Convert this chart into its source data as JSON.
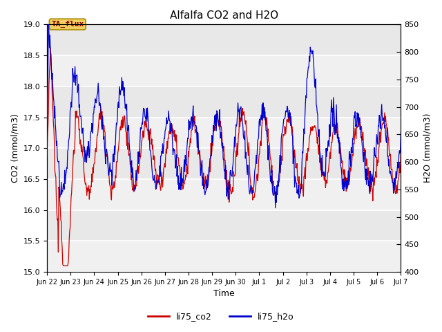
{
  "title": "Alfalfa CO2 and H2O",
  "xlabel": "Time",
  "ylabel_left": "CO2 (mmol/m3)",
  "ylabel_right": "H2O (mmol/m3)",
  "ylim_left": [
    15.0,
    19.0
  ],
  "ylim_right": [
    400,
    850
  ],
  "annotation_text": "TA_flux",
  "bg_color": "#e8e8e8",
  "bg_band_color": "#d8d8d8",
  "line_color_co2": "#cc0000",
  "line_color_h2o": "#0000cc",
  "legend_co2": "li75_co2",
  "legend_h2o": "li75_h2o",
  "x_tick_labels": [
    "Jun 22",
    "Jun 23",
    "Jun 24",
    "Jun 25",
    "Jun 26",
    "Jun 27",
    "Jun 28",
    "Jun 29",
    "Jun 30",
    "Jul 1",
    "Jul 2",
    "Jul 3",
    "Jul 4",
    "Jul 5",
    "Jul 6",
    "Jul 7"
  ],
  "n_points": 720
}
